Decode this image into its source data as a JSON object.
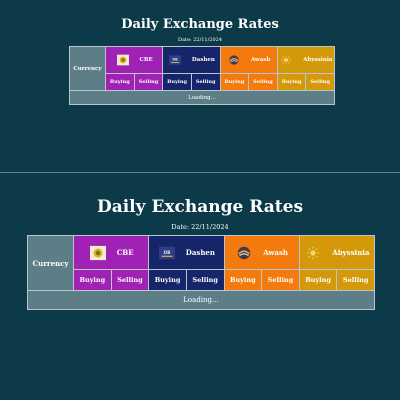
{
  "title": "Daily Exchange Rates",
  "date": "Date: 22/11/2024",
  "currency_header": "Currency",
  "banks": [
    {
      "name": "CBE",
      "color": "#9f22b4",
      "icon": "cbe-logo-icon"
    },
    {
      "name": "Dashen",
      "color": "#16246a",
      "icon": "dashen-logo-icon"
    },
    {
      "name": "Awash",
      "color": "#f47a0e",
      "icon": "awash-logo-icon"
    },
    {
      "name": "Abyssinia",
      "color": "#d4990a",
      "icon": "abyssinia-logo-icon"
    }
  ],
  "buying_label": "Buying",
  "selling_label": "Selling",
  "loading_text": "Loading...",
  "colors": {
    "background": "#0c3a48",
    "currency_cell": "#5e7e87",
    "border": "#b8c7cc"
  }
}
